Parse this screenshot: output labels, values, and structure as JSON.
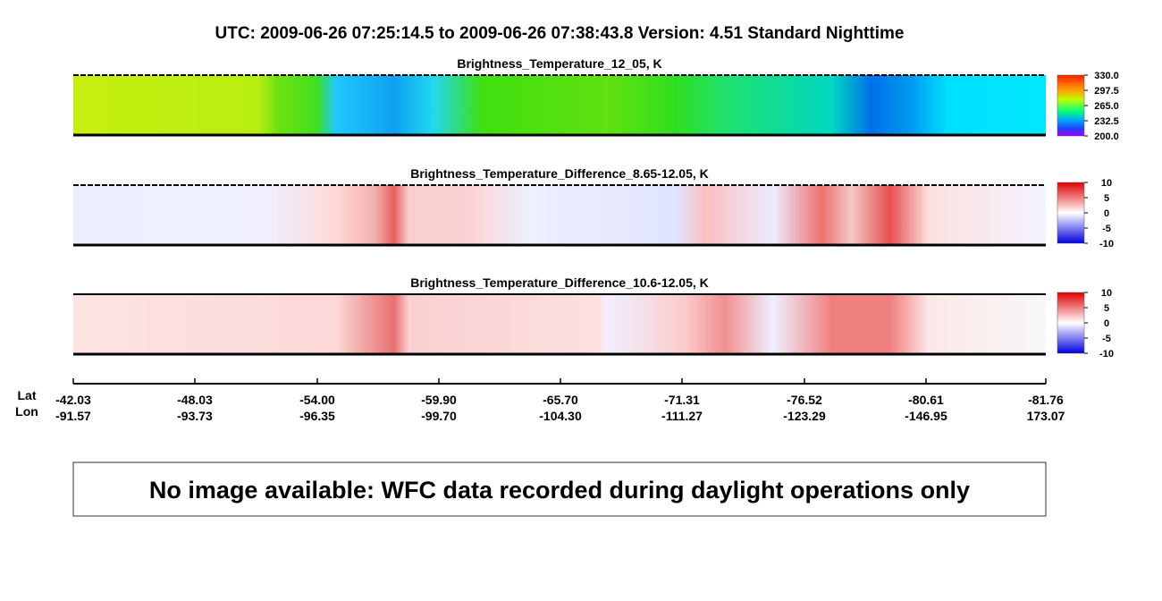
{
  "title": "UTC:  2009-06-26   07:25:14.5  to  2009-06-26   07:38:43.8    Version: 4.51  Standard Nighttime",
  "panels": [
    {
      "title": "Brightness_Temperature_12_05, K",
      "colorbar_ticks": [
        {
          "value": 330,
          "label": "330.0"
        },
        {
          "value": 297.5,
          "label": "297.5"
        },
        {
          "value": 265,
          "label": "265.0"
        },
        {
          "value": 232.5,
          "label": "232.5"
        },
        {
          "value": 200,
          "label": "200.0"
        }
      ]
    },
    {
      "title": "Brightness_Temperature_Difference_8.65-12.05, K",
      "colorbar_ticks": [
        10,
        5,
        0,
        -5,
        -10
      ]
    },
    {
      "title": "Brightness_Temperature_Difference_10.6-12.05, K",
      "colorbar_ticks": [
        10,
        5,
        0,
        -5,
        -10
      ]
    }
  ],
  "axis": {
    "lat_label": "Lat",
    "lon_label": "Lon",
    "lat": [
      "-42.03",
      "-48.03",
      "-54.00",
      "-59.90",
      "-65.70",
      "-71.31",
      "-76.52",
      "-80.61",
      "-81.76"
    ],
    "lon": [
      "-91.57",
      "-93.73",
      "-96.35",
      "-99.70",
      "-104.30",
      "-111.27",
      "-123.29",
      "-146.95",
      "173.07"
    ]
  },
  "message": "No image available: WFC data recorded during daylight operations only"
}
